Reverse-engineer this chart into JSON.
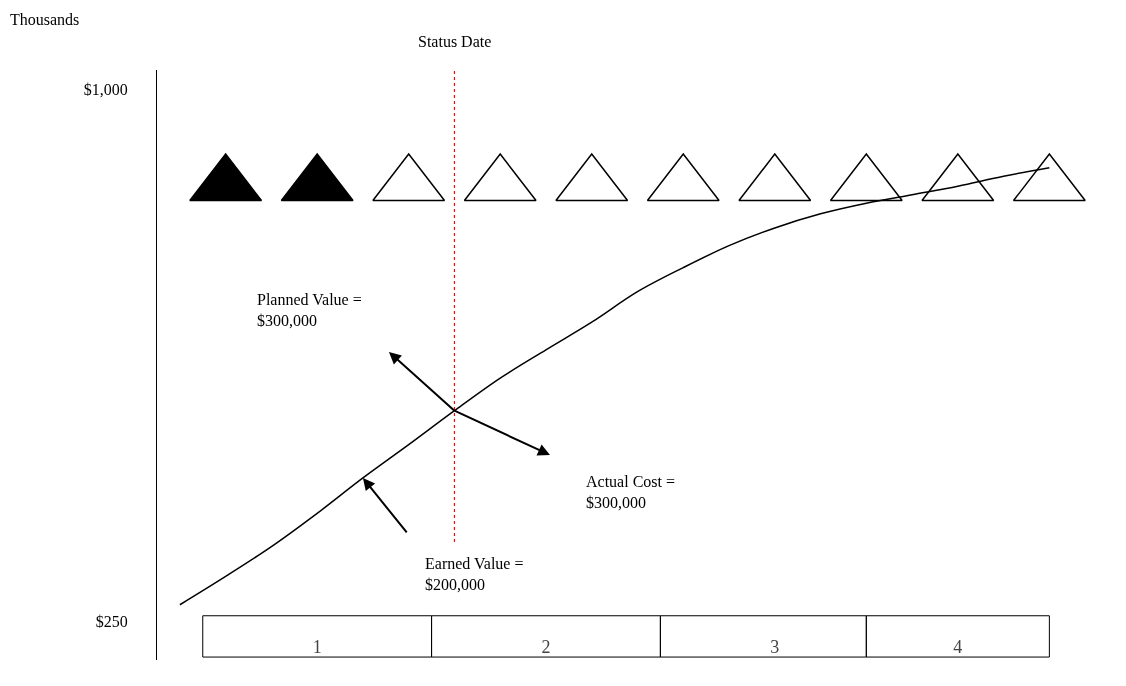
{
  "chart_data": {
    "type": "line",
    "ylabel": "Thousands",
    "categories": [
      null,
      null,
      null,
      "1",
      null,
      null,
      null,
      null,
      "2",
      null,
      null,
      null,
      null,
      "3",
      null,
      null,
      null,
      "4",
      null,
      null,
      null
    ],
    "ylim": [
      195,
      1028
    ],
    "yticks": [
      {
        "value": 250,
        "label": "$250"
      },
      {
        "value": 1000,
        "label": "$1,000"
      }
    ],
    "series": [
      {
        "color": "#000000",
        "values": [
          273,
          313,
          355,
          402,
          452,
          499,
          547,
          593,
          633,
          672,
          715,
          749,
          780,
          805,
          825,
          840,
          852,
          864,
          878,
          890,
          null
        ]
      }
    ],
    "annotations": [
      "Status Date",
      "Planned Value =\n$300,000",
      "Actual Cost =\n$300,000",
      "Earned Value =\n$200,000"
    ]
  }
}
